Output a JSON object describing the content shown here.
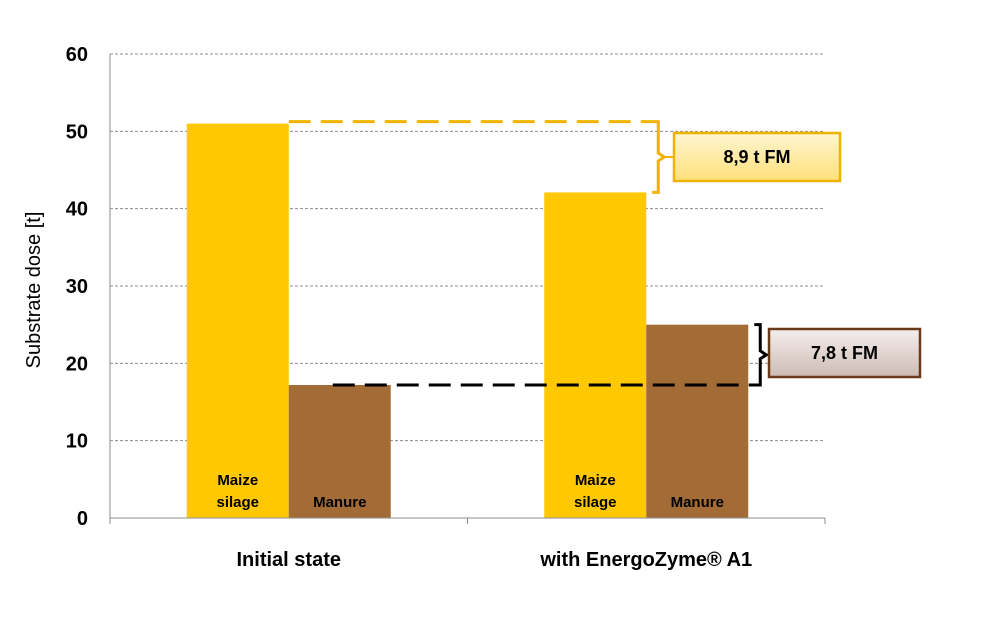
{
  "chart_data": {
    "type": "bar",
    "ylabel": "Substrate dose [t]",
    "ylim": [
      0,
      60
    ],
    "yticks": [
      "0",
      "10",
      "20",
      "30",
      "40",
      "50",
      "60"
    ],
    "grid": true,
    "categories": [
      "Initial state",
      "with EnergoZyme® A1"
    ],
    "series": [
      {
        "label_lines": [
          "Maize",
          "silage"
        ],
        "color": "#FFC800",
        "values": [
          51,
          42.1
        ]
      },
      {
        "label_lines": [
          "Manure"
        ],
        "color": "#A36B35",
        "values": [
          17.2,
          25
        ]
      }
    ],
    "annotations": [
      {
        "text": "8,9 t FM",
        "from": 51,
        "to": 42.1,
        "line_color": "#F0B400",
        "box_fill": "#FFE89A",
        "box_border": "#F0B400"
      },
      {
        "text": "7,8 t FM",
        "from": 17.2,
        "to": 25,
        "line_color": "#000000",
        "box_fill": "#E4D8D3",
        "box_border": "#6A3A18"
      }
    ]
  }
}
